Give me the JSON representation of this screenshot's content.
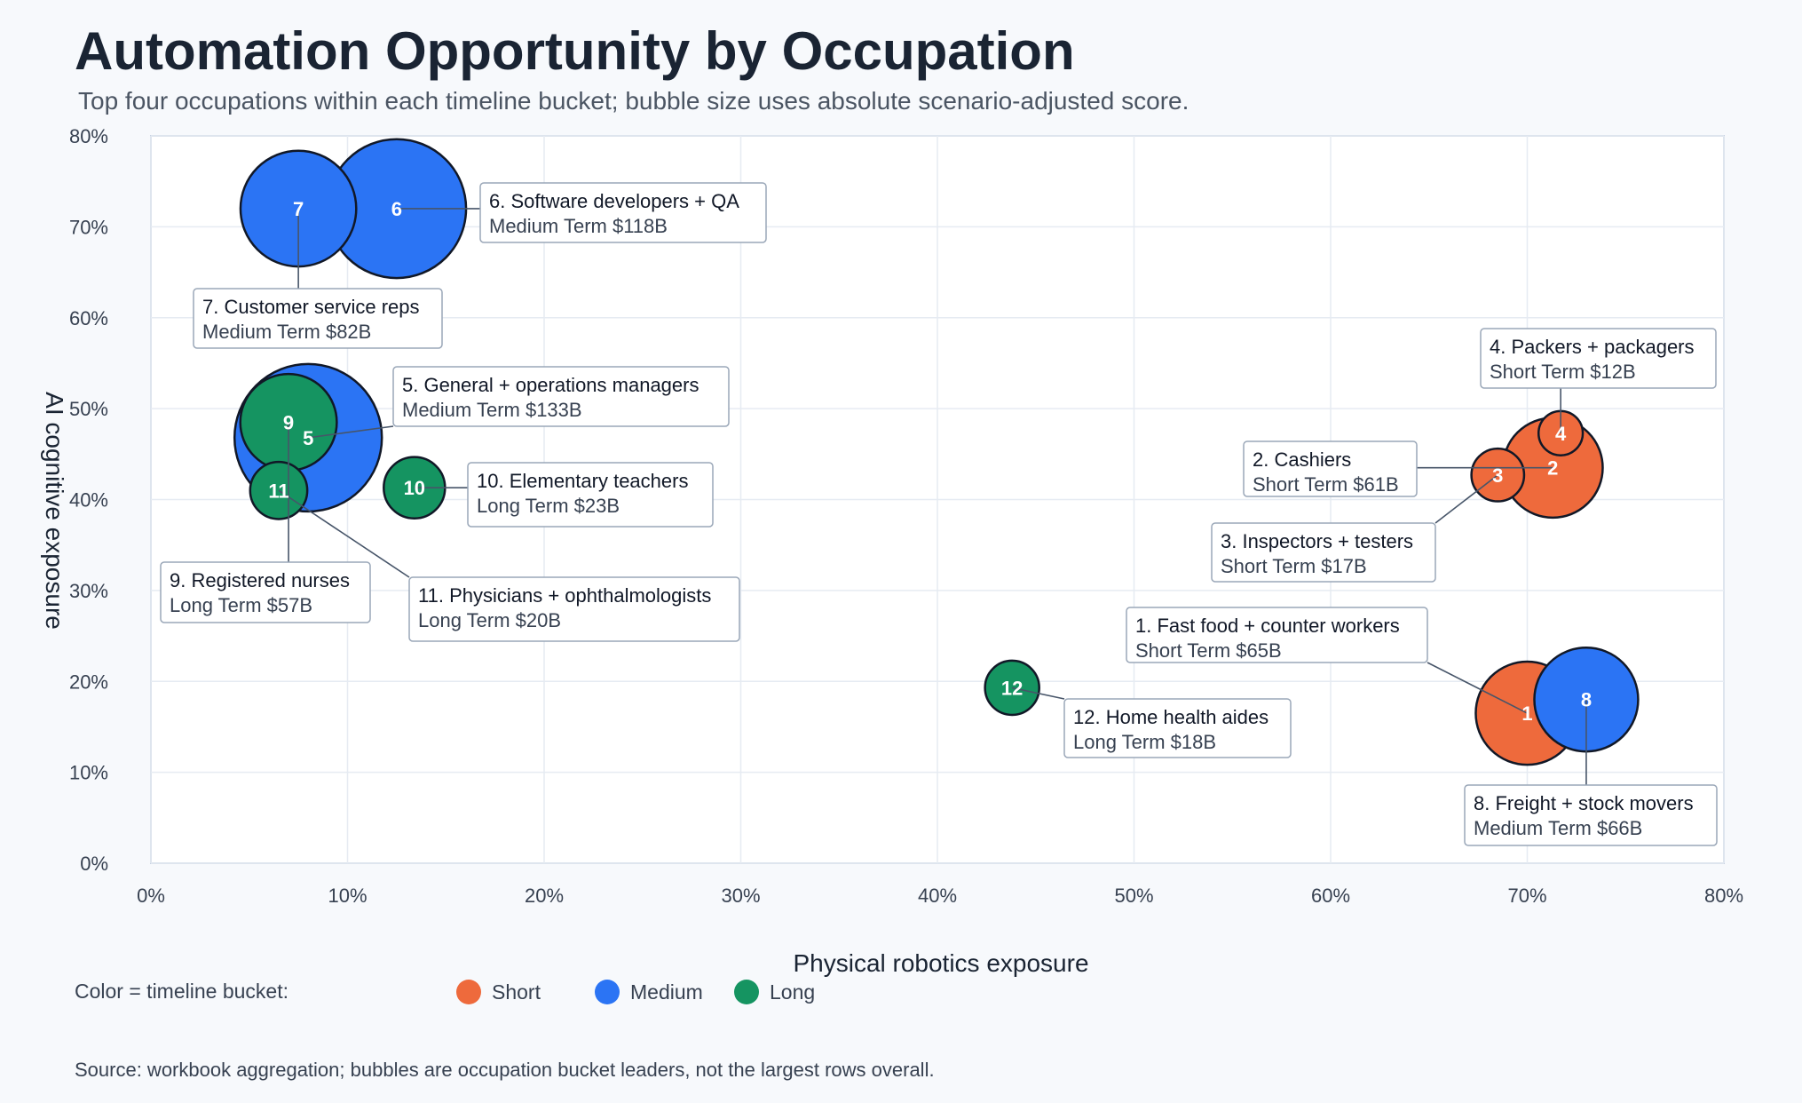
{
  "title": "Automation Opportunity by Occupation",
  "subtitle": "Top four occupations within each timeline bucket; bubble size uses absolute scenario-adjusted score.",
  "source": "Source: workbook aggregation; bubbles are occupation bucket leaders, not the largest rows overall.",
  "legend_title": "Color = timeline bucket:",
  "colors": {
    "Short": "#ee6a3c",
    "Medium": "#2b74f4",
    "Long": "#159461"
  },
  "chart_data": {
    "type": "scatter",
    "title": "Automation Opportunity by Occupation",
    "xlabel": "Physical robotics exposure",
    "ylabel": "AI cognitive exposure",
    "xlim": [
      0,
      0.8
    ],
    "ylim": [
      0,
      0.8
    ],
    "xticks": [
      "0%",
      "10%",
      "20%",
      "30%",
      "40%",
      "50%",
      "60%",
      "70%",
      "80%"
    ],
    "yticks": [
      "0%",
      "10%",
      "20%",
      "30%",
      "40%",
      "50%",
      "60%",
      "70%",
      "80%"
    ],
    "grid": true,
    "legend_placement": "bottom-left",
    "series": [
      {
        "name": "Short",
        "points": [
          {
            "rank": 1,
            "label": "1. Fast food + counter workers",
            "sub": "Short Term $65B",
            "x": 0.7,
            "y": 0.165,
            "value_b": 65
          },
          {
            "rank": 2,
            "label": "2. Cashiers",
            "sub": "Short Term $61B",
            "x": 0.713,
            "y": 0.435,
            "value_b": 61
          },
          {
            "rank": 3,
            "label": "3. Inspectors + testers",
            "sub": "Short Term $17B",
            "x": 0.685,
            "y": 0.427,
            "value_b": 17
          },
          {
            "rank": 4,
            "label": "4. Packers + packagers",
            "sub": "Short Term $12B",
            "x": 0.717,
            "y": 0.473,
            "value_b": 12
          }
        ]
      },
      {
        "name": "Medium",
        "points": [
          {
            "rank": 5,
            "label": "5. General + operations managers",
            "sub": "Medium Term $133B",
            "x": 0.08,
            "y": 0.468,
            "value_b": 133
          },
          {
            "rank": 6,
            "label": "6. Software developers + QA",
            "sub": "Medium Term $118B",
            "x": 0.125,
            "y": 0.72,
            "value_b": 118
          },
          {
            "rank": 7,
            "label": "7. Customer service reps",
            "sub": "Medium Term $82B",
            "x": 0.075,
            "y": 0.72,
            "value_b": 82
          },
          {
            "rank": 8,
            "label": "8. Freight + stock movers",
            "sub": "Medium Term $66B",
            "x": 0.73,
            "y": 0.18,
            "value_b": 66
          }
        ]
      },
      {
        "name": "Long",
        "points": [
          {
            "rank": 9,
            "label": "9. Registered nurses",
            "sub": "Long Term $57B",
            "x": 0.07,
            "y": 0.485,
            "value_b": 57
          },
          {
            "rank": 10,
            "label": "10. Elementary teachers",
            "sub": "Long Term $23B",
            "x": 0.134,
            "y": 0.413,
            "value_b": 23
          },
          {
            "rank": 11,
            "label": "11. Physicians + ophthalmologists",
            "sub": "Long Term $20B",
            "x": 0.065,
            "y": 0.41,
            "value_b": 20
          },
          {
            "rank": 12,
            "label": "12. Home health aides",
            "sub": "Long Term $18B",
            "x": 0.438,
            "y": 0.193,
            "value_b": 18
          }
        ]
      }
    ]
  }
}
